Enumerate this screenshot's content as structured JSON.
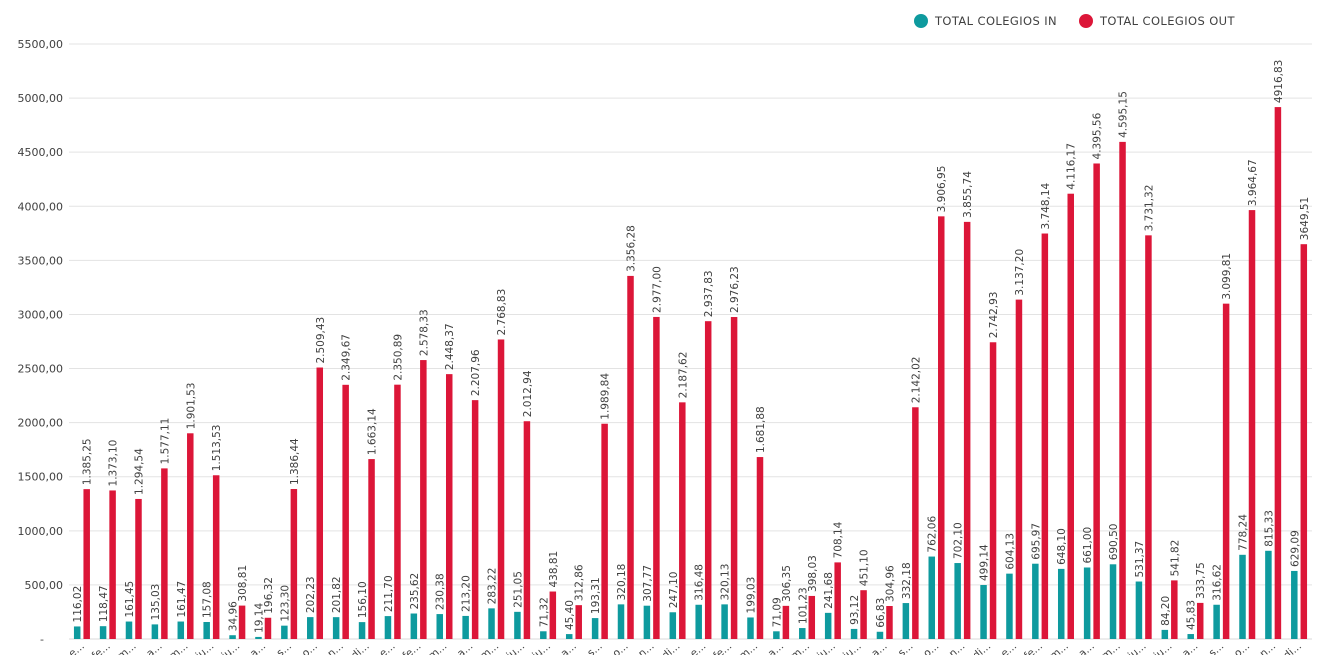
{
  "chart_data": {
    "type": "bar",
    "legend_position": "top-right",
    "grid": true,
    "ylim": [
      0,
      5500
    ],
    "y_ticks": [
      "-",
      "500,00",
      "1000,00",
      "1500,00",
      "2000,00",
      "2500,00",
      "3000,00",
      "3500,00",
      "4000,00",
      "4500,00",
      "5000,00",
      "5500,00"
    ],
    "categories": [
      "e...",
      "fe...",
      "m...",
      "a...",
      "m...",
      "ju...",
      "ju...",
      "a...",
      "s...",
      "o...",
      "n...",
      "di...",
      "e...",
      "fe...",
      "m...",
      "a...",
      "m...",
      "ju...",
      "ju...",
      "a...",
      "s...",
      "o...",
      "n...",
      "di...",
      "e...",
      "fe...",
      "m...",
      "a...",
      "m...",
      "ju...",
      "ju...",
      "a...",
      "s...",
      "o...",
      "n...",
      "di...",
      "e...",
      "fe...",
      "m...",
      "a...",
      "m...",
      "ju...",
      "ju...",
      "a...",
      "s...",
      "o...",
      "n...",
      "di..."
    ],
    "series": [
      {
        "name": "TOTAL COLEGIOS IN",
        "color": "#0e9a9e",
        "values": [
          116.02,
          118.47,
          161.45,
          135.03,
          161.47,
          157.08,
          34.96,
          19.14,
          123.3,
          202.23,
          201.82,
          156.1,
          211.7,
          235.62,
          230.38,
          213.2,
          283.22,
          251.05,
          71.32,
          45.4,
          193.31,
          320.18,
          307.77,
          247.1,
          316.48,
          320.13,
          199.03,
          71.09,
          101.23,
          241.68,
          93.12,
          66.83,
          332.18,
          762.06,
          702.1,
          499.14,
          604.13,
          695.97,
          648.1,
          661.0,
          690.5,
          531.37,
          84.2,
          45.83,
          316.62,
          778.24,
          815.33,
          629.09
        ],
        "labels": [
          "116,02",
          "118,47",
          "161,45",
          "135,03",
          "161,47",
          "157,08",
          "34,96",
          "19,14",
          "123,30",
          "202,23",
          "201,82",
          "156,10",
          "211,70",
          "235,62",
          "230,38",
          "213,20",
          "283,22",
          "251,05",
          "71,32",
          "45,40",
          "193,31",
          "320,18",
          "307,77",
          "247,10",
          "316,48",
          "320,13",
          "199,03",
          "71,09",
          "101,23",
          "241,68",
          "93,12",
          "66,83",
          "332,18",
          "762,06",
          "702,10",
          "499,14",
          "604,13",
          "695,97",
          "648,10",
          "661,00",
          "690,50",
          "531,37",
          "84,20",
          "45,83",
          "316,62",
          "778,24",
          "815,33",
          "629,09"
        ]
      },
      {
        "name": "TOTAL COLEGIOS OUT",
        "color": "#dc1638",
        "values": [
          1385.25,
          1373.1,
          1294.54,
          1577.11,
          1901.53,
          1513.53,
          308.81,
          196.32,
          1386.44,
          2509.43,
          2349.67,
          1663.14,
          2350.89,
          2578.33,
          2448.37,
          2207.96,
          2768.83,
          2012.94,
          438.81,
          312.86,
          1989.84,
          3356.28,
          2977.0,
          2187.62,
          2937.83,
          2976.23,
          1681.88,
          306.35,
          398.03,
          708.14,
          451.1,
          304.96,
          2142.02,
          3906.95,
          3855.74,
          2742.93,
          3137.2,
          3748.14,
          4116.17,
          4395.56,
          4595.15,
          3731.32,
          541.82,
          333.75,
          3099.81,
          3964.67,
          4916.83,
          3649.51
        ],
        "labels": [
          "1.385,25",
          "1.373,10",
          "1.294,54",
          "1.577,11",
          "1.901,53",
          "1.513,53",
          "308,81",
          "196,32",
          "1.386,44",
          "2.509,43",
          "2.349,67",
          "1.663,14",
          "2.350,89",
          "2.578,33",
          "2.448,37",
          "2.207,96",
          "2.768,83",
          "2.012,94",
          "438,81",
          "312,86",
          "1.989,84",
          "3.356,28",
          "2.977,00",
          "2.187,62",
          "2.937,83",
          "2.976,23",
          "1.681,88",
          "306,35",
          "398,03",
          "708,14",
          "451,10",
          "304,96",
          "2.142,02",
          "3.906,95",
          "3.855,74",
          "2.742,93",
          "3.137,20",
          "3.748,14",
          "4.116,17",
          "4.395,56",
          "4.595,15",
          "3.731,32",
          "541,82",
          "333,75",
          "3.099,81",
          "3.964,67",
          "4916,83",
          "3649,51"
        ]
      }
    ]
  }
}
